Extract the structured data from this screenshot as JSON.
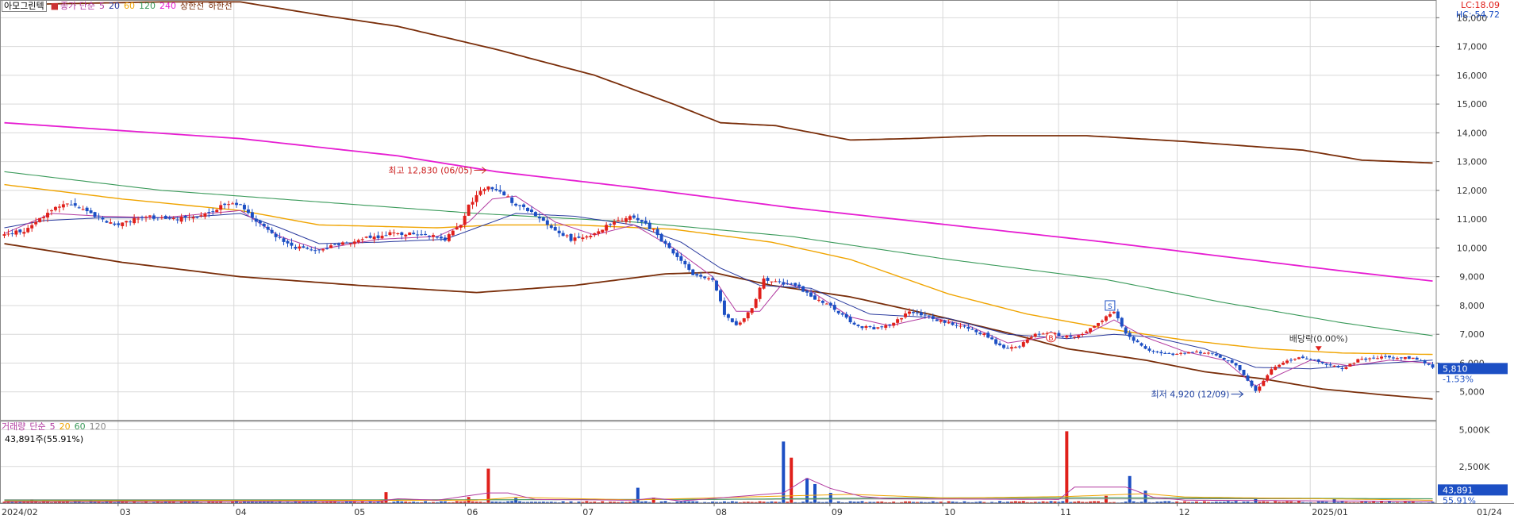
{
  "header": {
    "stock_name": "아모그린텍",
    "price_label": "종가 단순",
    "ma_periods": [
      "5",
      "20",
      "60",
      "120",
      "240"
    ],
    "upper_band_label": "상한선",
    "lower_band_label": "하한선",
    "lc_label": "LC:18.09",
    "hc_label": "HC:-54.72"
  },
  "volume_header": {
    "title": "거래량",
    "ma_label": "단순",
    "ma_periods": [
      "5",
      "20",
      "60",
      "120"
    ],
    "current_volume": "43,891주(55.91%)"
  },
  "colors": {
    "up": "#e0201b",
    "down": "#1c4fc4",
    "ma5": "#b23aa0",
    "ma20": "#2a3a9e",
    "ma60": "#f0a400",
    "ma120": "#3a9a5a",
    "ma240": "#e61ed2",
    "band": "#7a2e0a",
    "grid": "#d9d9d9"
  },
  "chart_data": [
    {
      "type": "candlestick",
      "title": "아모그린텍",
      "x_ticks": [
        "2024/02",
        "03",
        "04",
        "05",
        "06",
        "07",
        "08",
        "09",
        "10",
        "11",
        "12",
        "2025/01",
        "01/24"
      ],
      "y_ticks": [
        "18,000",
        "17,000",
        "16,000",
        "15,000",
        "14,000",
        "13,000",
        "12,000",
        "11,000",
        "10,000",
        "9,000",
        "8,000",
        "7,000",
        "6,000",
        "5,000"
      ],
      "ylim": [
        4000,
        18450
      ],
      "current_price": "5,810",
      "current_change": "-1.53%",
      "annotations": {
        "high": "최고 12,830 (06/05)",
        "low": "최저 4,920 (12/09)",
        "ex_dividend": "배당락(0.00%)",
        "marker_b": "B",
        "marker_s": "S"
      },
      "close_anchors": [
        [
          0,
          10500
        ],
        [
          5,
          10600
        ],
        [
          12,
          11300
        ],
        [
          16,
          11600
        ],
        [
          22,
          11200
        ],
        [
          28,
          10800
        ],
        [
          35,
          11100
        ],
        [
          42,
          11000
        ],
        [
          50,
          11100
        ],
        [
          55,
          11450
        ],
        [
          60,
          11500
        ],
        [
          65,
          10800
        ],
        [
          72,
          10100
        ],
        [
          78,
          9900
        ],
        [
          85,
          10100
        ],
        [
          90,
          10300
        ],
        [
          95,
          10400
        ],
        [
          98,
          10500
        ],
        [
          102,
          10500
        ],
        [
          108,
          10450
        ],
        [
          112,
          10300
        ],
        [
          116,
          10800
        ],
        [
          118,
          11500
        ],
        [
          122,
          12100
        ],
        [
          126,
          12000
        ],
        [
          129,
          11600
        ],
        [
          133,
          11300
        ],
        [
          138,
          10800
        ],
        [
          144,
          10300
        ],
        [
          150,
          10500
        ],
        [
          155,
          10900
        ],
        [
          160,
          11100
        ],
        [
          165,
          10600
        ],
        [
          170,
          9800
        ],
        [
          175,
          9100
        ],
        [
          180,
          8900
        ],
        [
          183,
          7700
        ],
        [
          186,
          7300
        ],
        [
          190,
          7900
        ],
        [
          193,
          8900
        ],
        [
          197,
          8800
        ],
        [
          201,
          8700
        ],
        [
          205,
          8300
        ],
        [
          210,
          8000
        ],
        [
          216,
          7300
        ],
        [
          221,
          7200
        ],
        [
          226,
          7400
        ],
        [
          230,
          7800
        ],
        [
          237,
          7500
        ],
        [
          243,
          7300
        ],
        [
          249,
          7000
        ],
        [
          254,
          6500
        ],
        [
          258,
          6600
        ],
        [
          262,
          7000
        ],
        [
          267,
          7000
        ],
        [
          271,
          6900
        ],
        [
          275,
          7100
        ],
        [
          279,
          7500
        ],
        [
          282,
          7800
        ],
        [
          285,
          7000
        ],
        [
          290,
          6500
        ],
        [
          296,
          6300
        ],
        [
          302,
          6400
        ],
        [
          308,
          6300
        ],
        [
          313,
          5900
        ],
        [
          316,
          5400
        ],
        [
          318,
          5000
        ],
        [
          322,
          5800
        ],
        [
          326,
          6100
        ],
        [
          330,
          6200
        ],
        [
          335,
          6000
        ],
        [
          340,
          5800
        ],
        [
          344,
          6100
        ],
        [
          350,
          6200
        ],
        [
          356,
          6200
        ],
        [
          360,
          6100
        ],
        [
          363,
          5810
        ]
      ],
      "ma5_anchors": [
        [
          0,
          10500
        ],
        [
          12,
          11200
        ],
        [
          25,
          11100
        ],
        [
          40,
          11050
        ],
        [
          60,
          11300
        ],
        [
          70,
          10400
        ],
        [
          80,
          9950
        ],
        [
          95,
          10300
        ],
        [
          110,
          10400
        ],
        [
          118,
          10900
        ],
        [
          124,
          11700
        ],
        [
          130,
          11800
        ],
        [
          140,
          10900
        ],
        [
          150,
          10450
        ],
        [
          160,
          10800
        ],
        [
          170,
          10000
        ],
        [
          180,
          9000
        ],
        [
          186,
          7800
        ],
        [
          192,
          7800
        ],
        [
          198,
          8800
        ],
        [
          205,
          8500
        ],
        [
          215,
          7600
        ],
        [
          225,
          7300
        ],
        [
          235,
          7600
        ],
        [
          245,
          7300
        ],
        [
          255,
          6700
        ],
        [
          265,
          6900
        ],
        [
          275,
          7000
        ],
        [
          282,
          7500
        ],
        [
          290,
          6900
        ],
        [
          300,
          6400
        ],
        [
          310,
          6100
        ],
        [
          318,
          5200
        ],
        [
          324,
          5600
        ],
        [
          332,
          6100
        ],
        [
          342,
          5900
        ],
        [
          352,
          6100
        ],
        [
          363,
          6000
        ]
      ],
      "ma20_anchors": [
        [
          0,
          10700
        ],
        [
          10,
          10950
        ],
        [
          25,
          11050
        ],
        [
          45,
          11050
        ],
        [
          60,
          11200
        ],
        [
          70,
          10700
        ],
        [
          80,
          10150
        ],
        [
          95,
          10200
        ],
        [
          112,
          10300
        ],
        [
          120,
          10700
        ],
        [
          130,
          11200
        ],
        [
          145,
          11100
        ],
        [
          160,
          10800
        ],
        [
          172,
          10200
        ],
        [
          182,
          9300
        ],
        [
          192,
          8700
        ],
        [
          205,
          8600
        ],
        [
          220,
          7700
        ],
        [
          240,
          7550
        ],
        [
          255,
          7000
        ],
        [
          270,
          6850
        ],
        [
          282,
          7000
        ],
        [
          292,
          6900
        ],
        [
          305,
          6500
        ],
        [
          318,
          5850
        ],
        [
          332,
          5800
        ],
        [
          345,
          5950
        ],
        [
          363,
          6100
        ]
      ],
      "ma60_anchors": [
        [
          0,
          12200
        ],
        [
          30,
          11700
        ],
        [
          60,
          11300
        ],
        [
          80,
          10800
        ],
        [
          110,
          10700
        ],
        [
          125,
          10800
        ],
        [
          145,
          10800
        ],
        [
          170,
          10650
        ],
        [
          195,
          10200
        ],
        [
          215,
          9600
        ],
        [
          240,
          8400
        ],
        [
          260,
          7700
        ],
        [
          280,
          7200
        ],
        [
          300,
          6800
        ],
        [
          320,
          6500
        ],
        [
          340,
          6350
        ],
        [
          363,
          6300
        ]
      ],
      "ma120_anchors": [
        [
          0,
          12650
        ],
        [
          40,
          12000
        ],
        [
          80,
          11600
        ],
        [
          120,
          11200
        ],
        [
          160,
          10900
        ],
        [
          200,
          10400
        ],
        [
          240,
          9600
        ],
        [
          280,
          8900
        ],
        [
          310,
          8100
        ],
        [
          340,
          7400
        ],
        [
          363,
          6950
        ]
      ],
      "ma240_anchors": [
        [
          0,
          14350
        ],
        [
          60,
          13800
        ],
        [
          100,
          13200
        ],
        [
          125,
          12650
        ],
        [
          160,
          12100
        ],
        [
          200,
          11400
        ],
        [
          240,
          10800
        ],
        [
          280,
          10200
        ],
        [
          310,
          9700
        ],
        [
          340,
          9200
        ],
        [
          363,
          8850
        ]
      ],
      "upper_band_anchors": [
        [
          0,
          18450
        ],
        [
          40,
          18550
        ],
        [
          60,
          18550
        ],
        [
          80,
          18100
        ],
        [
          100,
          17700
        ],
        [
          125,
          16900
        ],
        [
          150,
          16000
        ],
        [
          170,
          15000
        ],
        [
          182,
          14350
        ],
        [
          196,
          14250
        ],
        [
          215,
          13750
        ],
        [
          230,
          13800
        ],
        [
          250,
          13900
        ],
        [
          275,
          13900
        ],
        [
          300,
          13700
        ],
        [
          330,
          13400
        ],
        [
          345,
          13050
        ],
        [
          363,
          12950
        ]
      ],
      "lower_band_anchors": [
        [
          0,
          10150
        ],
        [
          30,
          9500
        ],
        [
          60,
          9000
        ],
        [
          90,
          8700
        ],
        [
          120,
          8450
        ],
        [
          145,
          8700
        ],
        [
          168,
          9100
        ],
        [
          180,
          9150
        ],
        [
          195,
          8700
        ],
        [
          215,
          8300
        ],
        [
          235,
          7700
        ],
        [
          255,
          7050
        ],
        [
          270,
          6500
        ],
        [
          290,
          6100
        ],
        [
          305,
          5700
        ],
        [
          320,
          5450
        ],
        [
          335,
          5100
        ],
        [
          350,
          4900
        ],
        [
          363,
          4750
        ]
      ]
    },
    {
      "type": "bar",
      "title": "거래량",
      "y_ticks": [
        "5,000K",
        "2,500K"
      ],
      "ylim": [
        0,
        5300000
      ],
      "current_volume": "43,891",
      "current_ratio": "55.91%",
      "spikes": [
        [
          7,
          250000
        ],
        [
          22,
          200000
        ],
        [
          59,
          200000
        ],
        [
          97,
          750000
        ],
        [
          118,
          420000
        ],
        [
          123,
          2350000
        ],
        [
          130,
          350000
        ],
        [
          161,
          1050000
        ],
        [
          165,
          380000
        ],
        [
          198,
          4200000
        ],
        [
          200,
          3100000
        ],
        [
          204,
          1700000
        ],
        [
          206,
          1300000
        ],
        [
          210,
          700000
        ],
        [
          270,
          4900000
        ],
        [
          280,
          500000
        ],
        [
          286,
          1850000
        ],
        [
          290,
          850000
        ],
        [
          318,
          380000
        ],
        [
          338,
          300000
        ]
      ],
      "base_volume": 90000,
      "ma5_anchors": [
        [
          0,
          100000
        ],
        [
          95,
          120000
        ],
        [
          100,
          300000
        ],
        [
          110,
          200000
        ],
        [
          123,
          700000
        ],
        [
          128,
          700000
        ],
        [
          135,
          250000
        ],
        [
          160,
          200000
        ],
        [
          165,
          350000
        ],
        [
          172,
          150000
        ],
        [
          198,
          700000
        ],
        [
          204,
          1700000
        ],
        [
          210,
          1000000
        ],
        [
          218,
          450000
        ],
        [
          225,
          300000
        ],
        [
          268,
          250000
        ],
        [
          272,
          1100000
        ],
        [
          285,
          1100000
        ],
        [
          292,
          400000
        ],
        [
          300,
          200000
        ],
        [
          363,
          120000
        ]
      ],
      "ma20_anchors": [
        [
          0,
          150000
        ],
        [
          120,
          200000
        ],
        [
          130,
          400000
        ],
        [
          160,
          220000
        ],
        [
          200,
          500000
        ],
        [
          215,
          600000
        ],
        [
          240,
          350000
        ],
        [
          270,
          450000
        ],
        [
          290,
          650000
        ],
        [
          300,
          420000
        ],
        [
          363,
          200000
        ]
      ],
      "ma60_anchors": [
        [
          0,
          200000
        ],
        [
          100,
          220000
        ],
        [
          180,
          260000
        ],
        [
          220,
          350000
        ],
        [
          280,
          380000
        ],
        [
          363,
          300000
        ]
      ],
      "ma120_anchors": [
        [
          0,
          230000
        ],
        [
          120,
          230000
        ],
        [
          240,
          290000
        ],
        [
          363,
          300000
        ]
      ]
    }
  ]
}
